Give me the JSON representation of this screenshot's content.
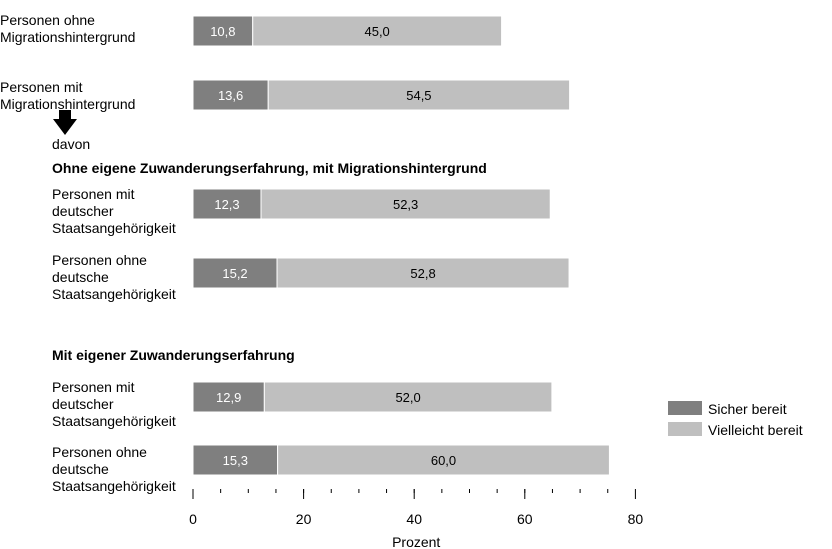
{
  "chart_data": {
    "type": "bar",
    "orientation": "horizontal",
    "stacked": true,
    "xlabel": "Prozent",
    "xlim": [
      0,
      80
    ],
    "xticks": [
      0,
      20,
      40,
      60,
      80
    ],
    "legend": {
      "position": "right"
    },
    "series": [
      {
        "name": "Sicher bereit",
        "color": "#7f7f7f",
        "label_color": "#ffffff",
        "values": [
          10.8,
          13.6,
          12.3,
          15.2,
          12.9,
          15.3
        ]
      },
      {
        "name": "Vielleicht bereit",
        "color": "#bfbfbf",
        "label_color": "#000000",
        "values": [
          45.0,
          54.5,
          52.3,
          52.8,
          52.0,
          60.0
        ]
      }
    ],
    "value_labels": [
      [
        "10,8",
        "45,0"
      ],
      [
        "13,6",
        "54,5"
      ],
      [
        "12,3",
        "52,3"
      ],
      [
        "15,2",
        "52,8"
      ],
      [
        "12,9",
        "52,0"
      ],
      [
        "15,3",
        "60,0"
      ]
    ],
    "categories": [
      "Personen ohne\nMigrationshintergrund",
      "Personen mit\nMigrationshintergrund",
      "Personen mit\ndeutscher\nStaatsangehörigkeit",
      "Personen ohne\ndeutsche\nStaatsangehörigkeit",
      "Personen mit\ndeutscher\nStaatsangehörigkeit",
      "Personen ohne\ndeutsche\nStaatsangehörigkeit"
    ],
    "annotations": {
      "davon": "davon",
      "group1": "Ohne eigene Zuwanderungserfahrung, mit Migrationshintergrund",
      "group2": "Mit eigener Zuwanderungserfahrung"
    }
  }
}
